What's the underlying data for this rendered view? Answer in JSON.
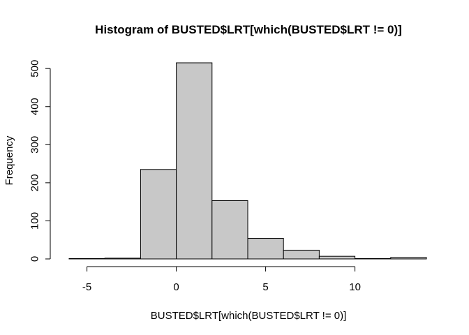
{
  "chart_data": {
    "type": "bar",
    "title": "Histogram of BUSTED$LRT[which(BUSTED$LRT != 0)]",
    "xlabel": "BUSTED$LRT[which(BUSTED$LRT != 0)]",
    "ylabel": "Frequency",
    "bins": [
      {
        "x0": -6,
        "x1": -4,
        "count": 1
      },
      {
        "x0": -4,
        "x1": -2,
        "count": 2
      },
      {
        "x0": -2,
        "x1": 0,
        "count": 235
      },
      {
        "x0": 0,
        "x1": 2,
        "count": 515
      },
      {
        "x0": 2,
        "x1": 4,
        "count": 153
      },
      {
        "x0": 4,
        "x1": 6,
        "count": 54
      },
      {
        "x0": 6,
        "x1": 8,
        "count": 23
      },
      {
        "x0": 8,
        "x1": 10,
        "count": 7
      },
      {
        "x0": 10,
        "x1": 12,
        "count": 1
      },
      {
        "x0": 12,
        "x1": 14,
        "count": 4
      }
    ],
    "xticks": [
      -5,
      0,
      5,
      10
    ],
    "yticks": [
      0,
      100,
      200,
      300,
      400,
      500
    ],
    "xlim": [
      -6,
      14
    ],
    "ylim": [
      0,
      515
    ],
    "bar_color": "#c8c8c8",
    "grid": false,
    "legend": "none"
  }
}
